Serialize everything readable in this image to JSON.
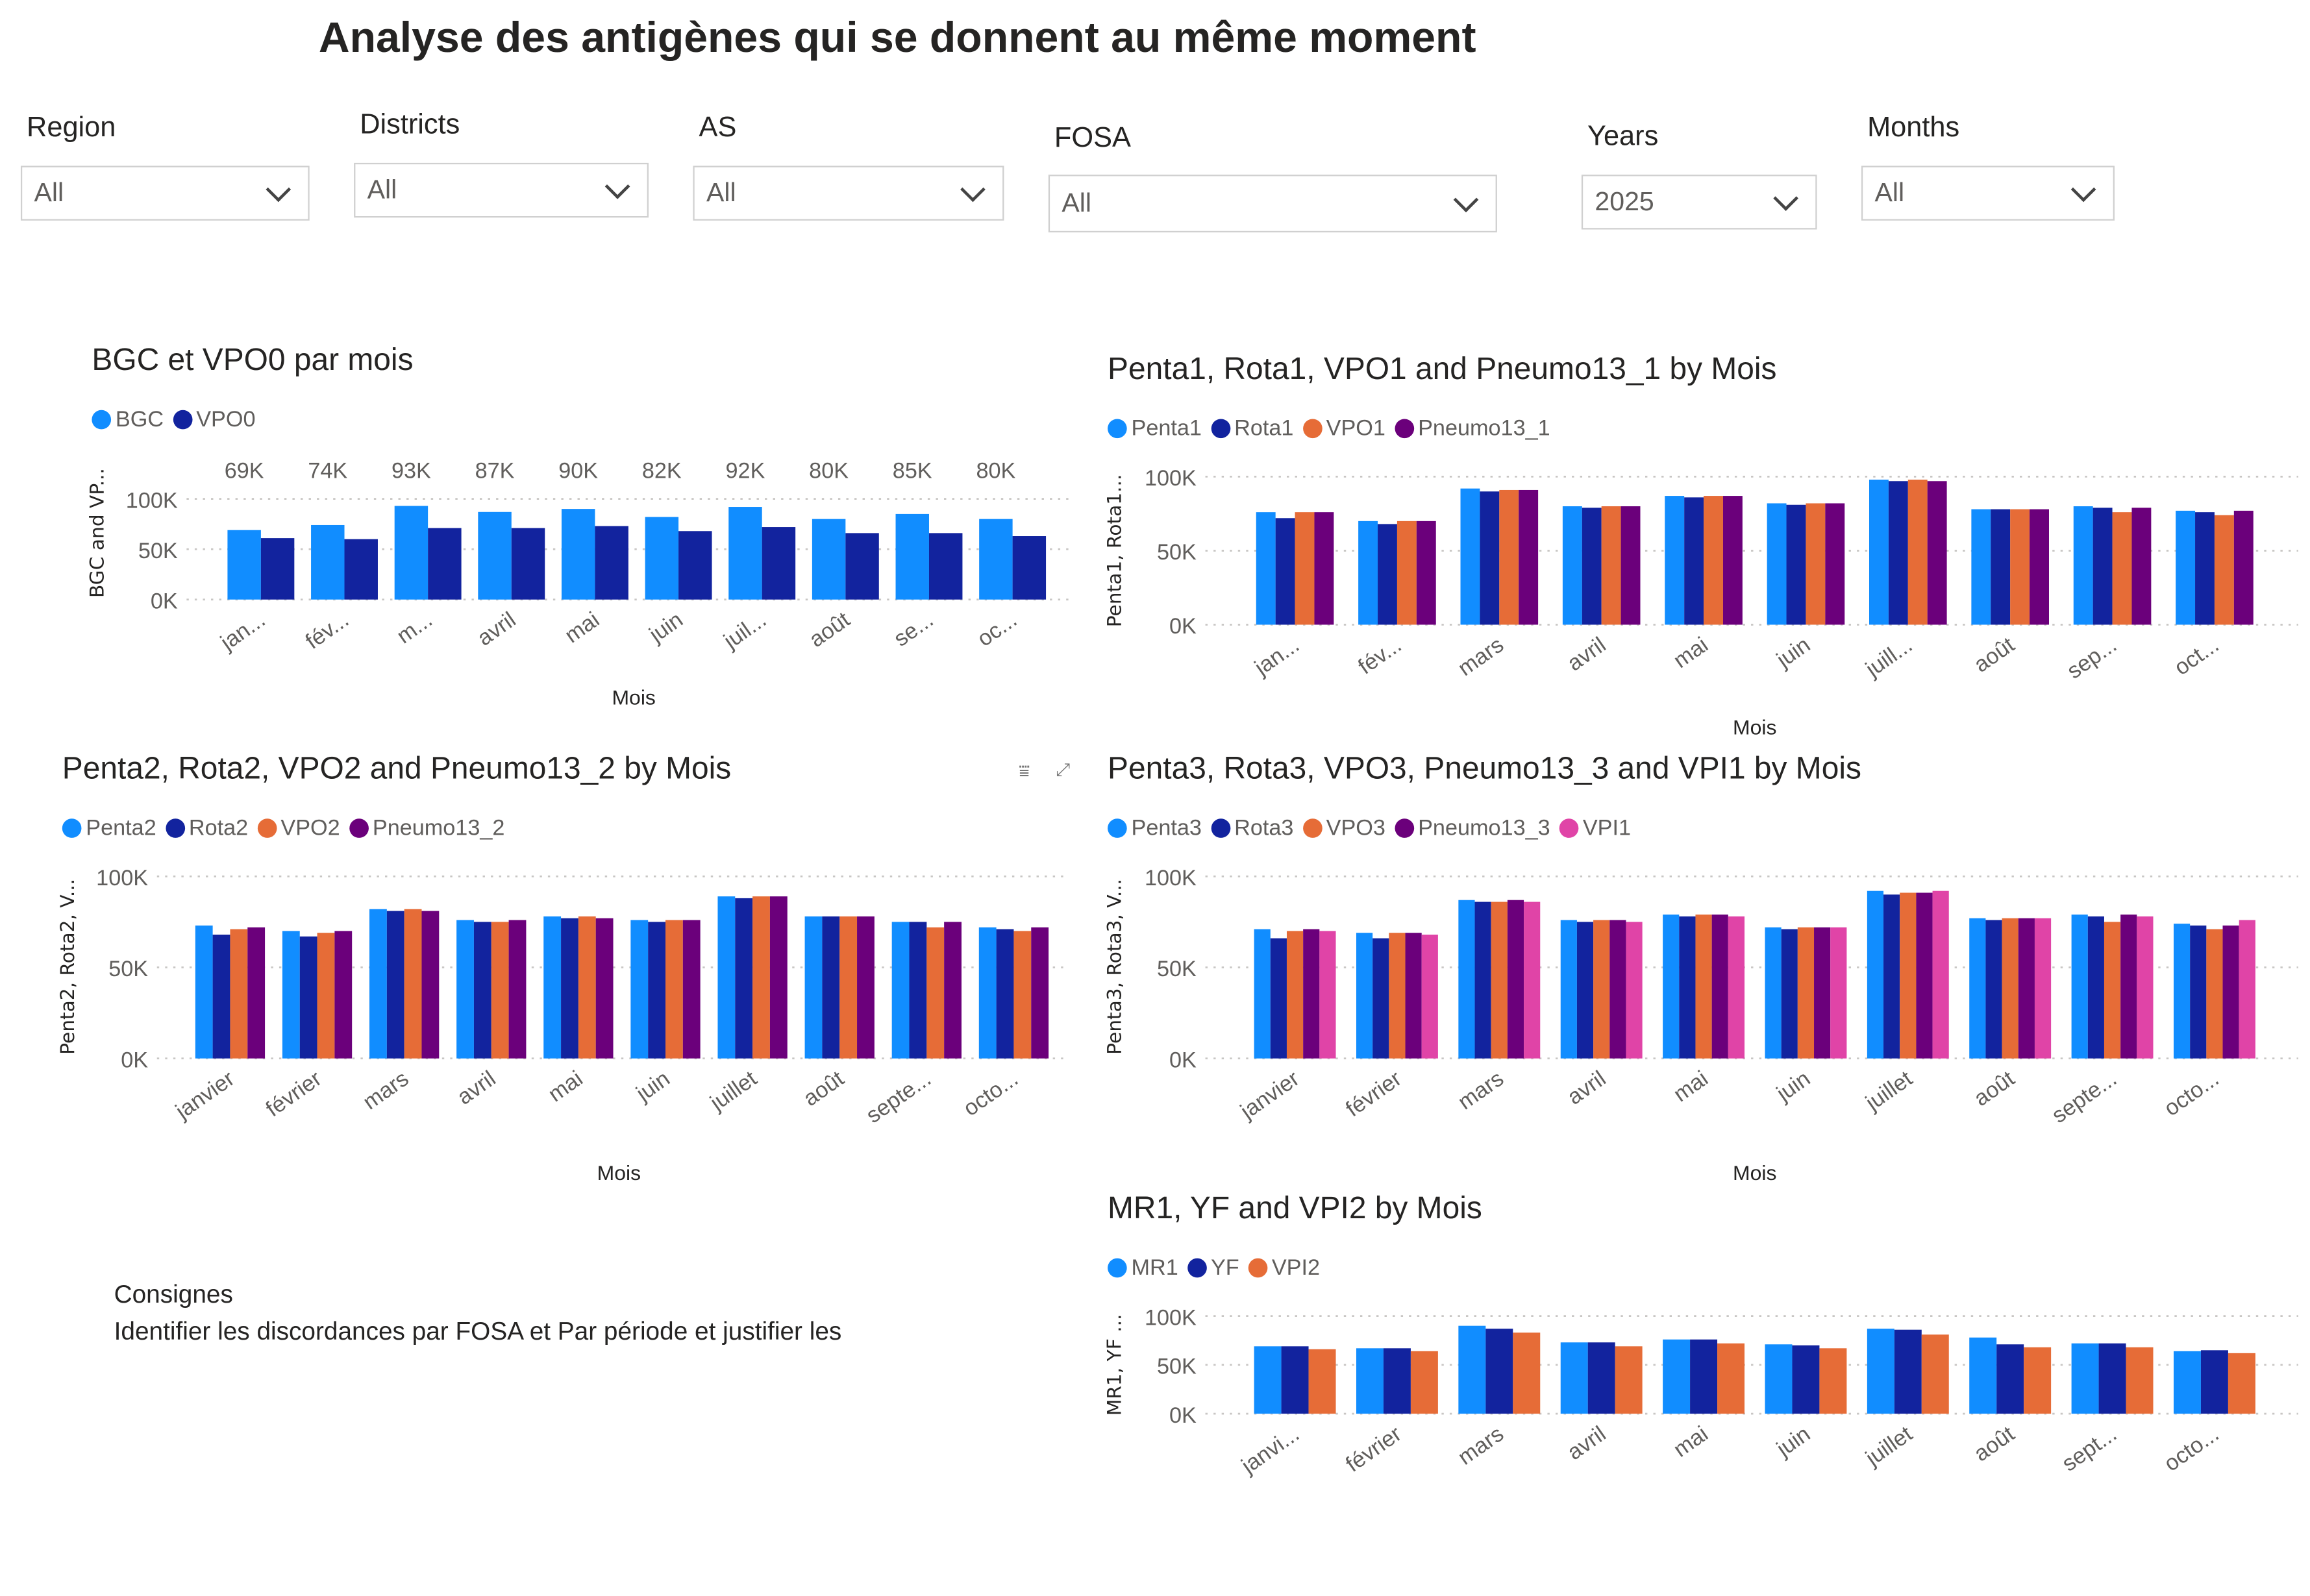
{
  "page_title": "Analyse des antigènes qui se donnent au même moment",
  "filters": [
    {
      "label": "Region",
      "value": "All"
    },
    {
      "label": "Districts",
      "value": "All"
    },
    {
      "label": "AS",
      "value": "All"
    },
    {
      "label": "FOSA",
      "value": "All"
    },
    {
      "label": "Years",
      "value": "2025"
    },
    {
      "label": "Months",
      "value": "All"
    }
  ],
  "consignes": {
    "title": "Consignes",
    "text": "Identifier les discordances par FOSA et Par période et justifier les"
  },
  "colors": {
    "Light blue": "#118DFF",
    "Dark blue": "#12239E",
    "Orange": "#E66C37",
    "Purple": "#6B007B",
    "Pink": "#E044A7"
  },
  "chart_data": [
    {
      "type": "bar",
      "title": "BGC et VPO0 par mois",
      "xlabel": "Mois",
      "ylabel": "BGC and VP...",
      "ylim": [
        0,
        100000
      ],
      "yticks": [
        "0K",
        "50K",
        "100K"
      ],
      "categories": [
        "jan...",
        "fév...",
        "m...",
        "avril",
        "mai",
        "juin",
        "juil...",
        "août",
        "se...",
        "oc..."
      ],
      "data_labels": [
        "69K",
        "74K",
        "93K",
        "87K",
        "90K",
        "82K",
        "92K",
        "80K",
        "85K",
        "80K"
      ],
      "series": [
        {
          "name": "BGC",
          "color": "#118DFF",
          "values": [
            69000,
            74000,
            93000,
            87000,
            90000,
            82000,
            92000,
            80000,
            85000,
            80000
          ]
        },
        {
          "name": "VPO0",
          "color": "#12239E",
          "values": [
            61000,
            60000,
            71000,
            71000,
            73000,
            68000,
            72000,
            66000,
            66000,
            63000
          ]
        }
      ]
    },
    {
      "type": "bar",
      "title": "Penta1, Rota1, VPO1 and Pneumo13_1 by Mois",
      "xlabel": "Mois",
      "ylabel": "Penta1, Rota1...",
      "ylim": [
        0,
        100000
      ],
      "yticks": [
        "0K",
        "50K",
        "100K"
      ],
      "categories": [
        "jan...",
        "fév...",
        "mars",
        "avril",
        "mai",
        "juin",
        "juill...",
        "août",
        "sep...",
        "oct..."
      ],
      "series": [
        {
          "name": "Penta1",
          "color": "#118DFF",
          "values": [
            76000,
            70000,
            92000,
            80000,
            87000,
            82000,
            98000,
            78000,
            80000,
            77000
          ]
        },
        {
          "name": "Rota1",
          "color": "#12239E",
          "values": [
            72000,
            68000,
            90000,
            79000,
            86000,
            81000,
            97000,
            78000,
            79000,
            76000
          ]
        },
        {
          "name": "VPO1",
          "color": "#E66C37",
          "values": [
            76000,
            70000,
            91000,
            80000,
            87000,
            82000,
            98000,
            78000,
            76000,
            74000
          ]
        },
        {
          "name": "Pneumo13_1",
          "color": "#6B007B",
          "values": [
            76000,
            70000,
            91000,
            80000,
            87000,
            82000,
            97000,
            78000,
            79000,
            77000
          ]
        }
      ]
    },
    {
      "type": "bar",
      "title": "Penta2, Rota2, VPO2 and Pneumo13_2 by Mois",
      "xlabel": "Mois",
      "ylabel": "Penta2, Rota2, V...",
      "ylim": [
        0,
        100000
      ],
      "yticks": [
        "0K",
        "50K",
        "100K"
      ],
      "categories": [
        "janvier",
        "février",
        "mars",
        "avril",
        "mai",
        "juin",
        "juillet",
        "août",
        "septe...",
        "octo..."
      ],
      "series": [
        {
          "name": "Penta2",
          "color": "#118DFF",
          "values": [
            73000,
            70000,
            82000,
            76000,
            78000,
            76000,
            89000,
            78000,
            75000,
            72000
          ]
        },
        {
          "name": "Rota2",
          "color": "#12239E",
          "values": [
            68000,
            67000,
            81000,
            75000,
            77000,
            75000,
            88000,
            78000,
            75000,
            71000
          ]
        },
        {
          "name": "VPO2",
          "color": "#E66C37",
          "values": [
            71000,
            69000,
            82000,
            75000,
            78000,
            76000,
            89000,
            78000,
            72000,
            70000
          ]
        },
        {
          "name": "Pneumo13_2",
          "color": "#6B007B",
          "values": [
            72000,
            70000,
            81000,
            76000,
            77000,
            76000,
            89000,
            78000,
            75000,
            72000
          ]
        }
      ]
    },
    {
      "type": "bar",
      "title": "Penta3, Rota3, VPO3, Pneumo13_3 and VPI1 by Mois",
      "xlabel": "Mois",
      "ylabel": "Penta3, Rota3, V...",
      "ylim": [
        0,
        100000
      ],
      "yticks": [
        "0K",
        "50K",
        "100K"
      ],
      "categories": [
        "janvier",
        "février",
        "mars",
        "avril",
        "mai",
        "juin",
        "juillet",
        "août",
        "septe...",
        "octo..."
      ],
      "series": [
        {
          "name": "Penta3",
          "color": "#118DFF",
          "values": [
            71000,
            69000,
            87000,
            76000,
            79000,
            72000,
            92000,
            77000,
            79000,
            74000
          ]
        },
        {
          "name": "Rota3",
          "color": "#12239E",
          "values": [
            66000,
            66000,
            86000,
            75000,
            78000,
            71000,
            90000,
            76000,
            78000,
            73000
          ]
        },
        {
          "name": "VPO3",
          "color": "#E66C37",
          "values": [
            70000,
            69000,
            86000,
            76000,
            79000,
            72000,
            91000,
            77000,
            75000,
            71000
          ]
        },
        {
          "name": "Pneumo13_3",
          "color": "#6B007B",
          "values": [
            71000,
            69000,
            87000,
            76000,
            79000,
            72000,
            91000,
            77000,
            79000,
            73000
          ]
        },
        {
          "name": "VPI1",
          "color": "#E044A7",
          "values": [
            70000,
            68000,
            86000,
            75000,
            78000,
            72000,
            92000,
            77000,
            78000,
            76000
          ]
        }
      ]
    },
    {
      "type": "bar",
      "title": "MR1, YF and VPI2 by Mois",
      "xlabel": "",
      "ylabel": "MR1, YF ...",
      "ylim": [
        0,
        100000
      ],
      "yticks": [
        "0K",
        "50K",
        "100K"
      ],
      "categories": [
        "janvi...",
        "février",
        "mars",
        "avril",
        "mai",
        "juin",
        "juillet",
        "août",
        "sept...",
        "octo..."
      ],
      "series": [
        {
          "name": "MR1",
          "color": "#118DFF",
          "values": [
            69000,
            67000,
            90000,
            73000,
            76000,
            71000,
            87000,
            78000,
            72000,
            64000
          ]
        },
        {
          "name": "YF",
          "color": "#12239E",
          "values": [
            69000,
            67000,
            87000,
            73000,
            76000,
            70000,
            86000,
            71000,
            72000,
            65000
          ]
        },
        {
          "name": "VPI2",
          "color": "#E66C37",
          "values": [
            66000,
            64000,
            83000,
            69000,
            72000,
            67000,
            81000,
            68000,
            68000,
            62000
          ]
        }
      ]
    }
  ]
}
